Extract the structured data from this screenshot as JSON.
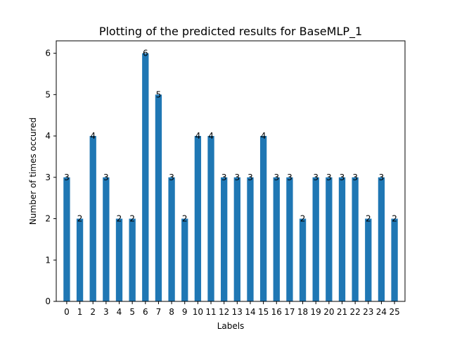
{
  "chart_data": {
    "type": "bar",
    "title": "Plotting of the predicted results for BaseMLP_1",
    "xlabel": "Labels",
    "ylabel": "Number of times occured",
    "categories": [
      "0",
      "1",
      "2",
      "3",
      "4",
      "5",
      "6",
      "7",
      "8",
      "9",
      "10",
      "11",
      "12",
      "13",
      "14",
      "15",
      "16",
      "17",
      "18",
      "19",
      "20",
      "21",
      "22",
      "23",
      "24",
      "25"
    ],
    "values": [
      3,
      2,
      4,
      3,
      2,
      2,
      6,
      5,
      3,
      2,
      4,
      4,
      3,
      3,
      3,
      4,
      3,
      3,
      2,
      3,
      3,
      3,
      3,
      2,
      3,
      2
    ],
    "ylim": [
      0,
      6.3
    ],
    "yticks": [
      0,
      1,
      2,
      3,
      4,
      5,
      6
    ],
    "grid": false,
    "bar_color": "#1f77b4"
  }
}
